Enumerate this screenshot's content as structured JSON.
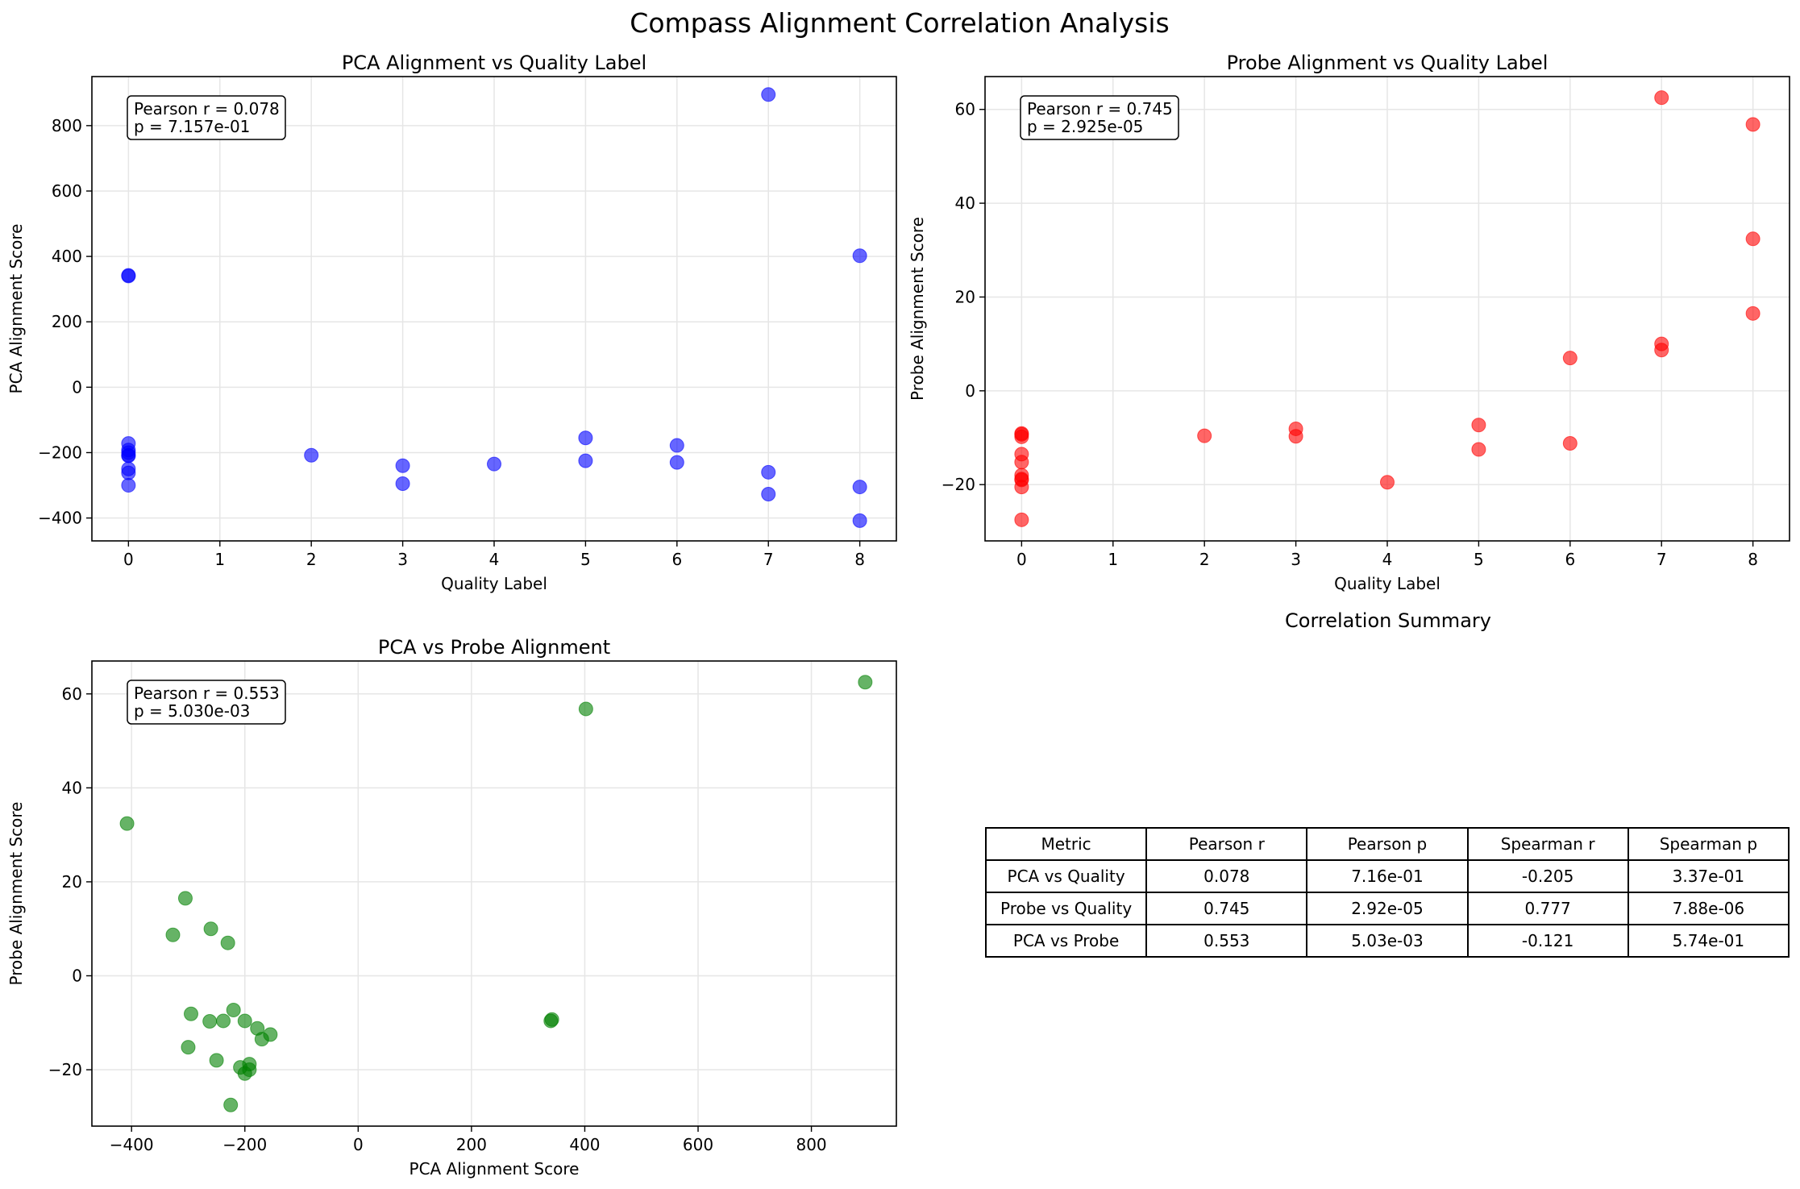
{
  "figure": {
    "suptitle": "Compass Alignment Correlation Analysis"
  },
  "chart_data": [
    {
      "type": "scatter",
      "title": "PCA Alignment vs Quality Label",
      "xlabel": "Quality Label",
      "ylabel": "PCA Alignment Score",
      "xlim": [
        -0.4,
        8.4
      ],
      "ylim": [
        -470,
        950
      ],
      "xticks": [
        0,
        1,
        2,
        3,
        4,
        5,
        6,
        7,
        8
      ],
      "yticks": [
        -400,
        -200,
        0,
        200,
        400,
        600,
        800
      ],
      "grid": true,
      "color": "#0000ff",
      "annotation": [
        "Pearson r = 0.078",
        "p = 7.157e-01"
      ],
      "x": [
        0,
        0,
        0,
        0,
        0,
        0,
        0,
        0,
        0,
        0,
        2,
        3,
        3,
        4,
        5,
        5,
        6,
        6,
        7,
        7,
        7,
        8,
        8,
        8
      ],
      "y": [
        342,
        340,
        -172,
        -192,
        -200,
        -210,
        -250,
        -262,
        -300,
        -208,
        -208,
        -240,
        -295,
        -235,
        -155,
        -225,
        -178,
        -230,
        895,
        -260,
        -327,
        402,
        -305,
        -408
      ]
    },
    {
      "type": "scatter",
      "title": "Probe Alignment vs Quality Label",
      "xlabel": "Quality Label",
      "ylabel": "Probe Alignment Score",
      "xlim": [
        -0.4,
        8.4
      ],
      "ylim": [
        -32,
        67
      ],
      "xticks": [
        0,
        1,
        2,
        3,
        4,
        5,
        6,
        7,
        8
      ],
      "yticks": [
        -20,
        0,
        20,
        40,
        60
      ],
      "grid": true,
      "color": "#ff0000",
      "annotation": [
        "Pearson r = 0.745",
        "p = 2.925e-05"
      ],
      "x": [
        0,
        0,
        0,
        0,
        0,
        0,
        0,
        0,
        0,
        0,
        2,
        3,
        3,
        4,
        5,
        5,
        6,
        6,
        7,
        7,
        7,
        8,
        8,
        8
      ],
      "y": [
        -9.3,
        -9.8,
        -13.5,
        -15.2,
        -18,
        -19,
        -20.5,
        -27.5,
        -9.1,
        -18.8,
        -9.6,
        -8.1,
        -9.7,
        -19.5,
        -7.3,
        -12.5,
        7,
        -11.2,
        62.5,
        10,
        8.7,
        56.8,
        32.4,
        16.5
      ]
    },
    {
      "type": "scatter",
      "title": "PCA vs Probe Alignment",
      "xlabel": "PCA Alignment Score",
      "ylabel": "Probe Alignment Score",
      "xlim": [
        -470,
        950
      ],
      "ylim": [
        -32,
        67
      ],
      "xticks": [
        -400,
        -200,
        0,
        200,
        400,
        600,
        800
      ],
      "yticks": [
        -20,
        0,
        20,
        40,
        60
      ],
      "grid": true,
      "color": "#008000",
      "annotation": [
        "Pearson r = 0.553",
        "p = 5.030e-03"
      ],
      "x": [
        -408,
        -305,
        -327,
        -260,
        -230,
        -295,
        -300,
        -250,
        -262,
        -220,
        -238,
        -200,
        -178,
        -170,
        -155,
        -192,
        -192,
        -208,
        -200,
        342,
        340,
        402,
        895,
        -225
      ],
      "y": [
        32.4,
        16.5,
        8.7,
        10,
        7,
        -8.1,
        -15.2,
        -18,
        -9.7,
        -7.3,
        -9.6,
        -9.6,
        -11.2,
        -13.5,
        -12.5,
        -18.8,
        -20,
        -19.5,
        -20.8,
        -9.3,
        -9.6,
        56.8,
        62.5,
        -27.5
      ]
    }
  ],
  "summary": {
    "title": "Correlation Summary",
    "headers": [
      "Metric",
      "Pearson r",
      "Pearson p",
      "Spearman r",
      "Spearman p"
    ],
    "rows": [
      [
        "PCA vs Quality",
        "0.078",
        "7.16e-01",
        "-0.205",
        "3.37e-01"
      ],
      [
        "Probe vs Quality",
        "0.745",
        "2.92e-05",
        "0.777",
        "7.88e-06"
      ],
      [
        "PCA vs Probe",
        "0.553",
        "5.03e-03",
        "-0.121",
        "5.74e-01"
      ]
    ]
  }
}
